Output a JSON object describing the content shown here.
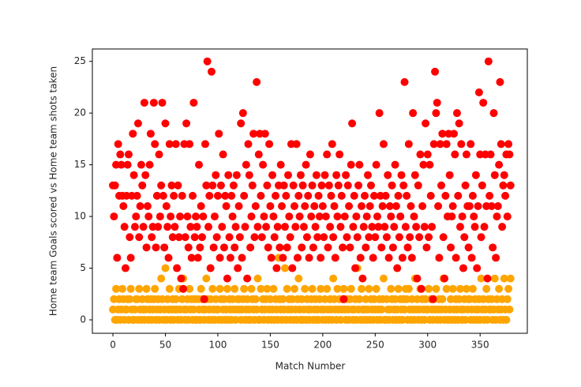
{
  "chart_data": {
    "type": "scatter",
    "x_label": "Match Number",
    "y_label": "Home team Goals scored vs Home team shots taken",
    "xlim": [
      -19.6,
      395
    ],
    "ylim": [
      -1.3,
      26.2
    ],
    "xticks": [
      0,
      50,
      100,
      150,
      200,
      250,
      300,
      350
    ],
    "yticks": [
      0,
      5,
      10,
      15,
      20,
      25
    ],
    "grid": false,
    "x": [
      0,
      1,
      2,
      3,
      4,
      5,
      6,
      7,
      8,
      9,
      10,
      11,
      12,
      13,
      14,
      15,
      16,
      17,
      18,
      19,
      20,
      21,
      22,
      23,
      24,
      25,
      26,
      27,
      28,
      29,
      30,
      31,
      32,
      33,
      34,
      35,
      36,
      37,
      38,
      39,
      40,
      41,
      42,
      43,
      44,
      45,
      46,
      47,
      48,
      49,
      50,
      51,
      52,
      53,
      54,
      55,
      56,
      57,
      58,
      59,
      60,
      61,
      62,
      63,
      64,
      65,
      66,
      67,
      68,
      69,
      70,
      71,
      72,
      73,
      74,
      75,
      76,
      77,
      78,
      79,
      80,
      81,
      82,
      83,
      84,
      85,
      86,
      87,
      88,
      89,
      90,
      91,
      92,
      93,
      94,
      95,
      96,
      97,
      98,
      99,
      100,
      101,
      102,
      103,
      104,
      105,
      106,
      107,
      108,
      109,
      110,
      111,
      112,
      113,
      114,
      115,
      116,
      117,
      118,
      119,
      120,
      121,
      122,
      123,
      124,
      125,
      126,
      127,
      128,
      129,
      130,
      131,
      132,
      133,
      134,
      135,
      136,
      137,
      138,
      139,
      140,
      141,
      142,
      143,
      144,
      145,
      146,
      147,
      148,
      149,
      150,
      151,
      152,
      153,
      154,
      155,
      156,
      157,
      158,
      159,
      160,
      161,
      162,
      163,
      164,
      165,
      166,
      167,
      168,
      169,
      170,
      171,
      172,
      173,
      174,
      175,
      176,
      177,
      178,
      179,
      180,
      181,
      182,
      183,
      184,
      185,
      186,
      187,
      188,
      189,
      190,
      191,
      192,
      193,
      194,
      195,
      196,
      197,
      198,
      199,
      200,
      201,
      202,
      203,
      204,
      205,
      206,
      207,
      208,
      209,
      210,
      211,
      212,
      213,
      214,
      215,
      216,
      217,
      218,
      219,
      220,
      221,
      222,
      223,
      224,
      225,
      226,
      227,
      228,
      229,
      230,
      231,
      232,
      233,
      234,
      235,
      236,
      237,
      238,
      239,
      240,
      241,
      242,
      243,
      244,
      245,
      246,
      247,
      248,
      249,
      250,
      251,
      252,
      253,
      254,
      255,
      256,
      257,
      258,
      259,
      260,
      261,
      262,
      263,
      264,
      265,
      266,
      267,
      268,
      269,
      270,
      271,
      272,
      273,
      274,
      275,
      276,
      277,
      278,
      279,
      280,
      281,
      282,
      283,
      284,
      285,
      286,
      287,
      288,
      289,
      290,
      291,
      292,
      293,
      294,
      295,
      296,
      297,
      298,
      299,
      300,
      301,
      302,
      303,
      304,
      305,
      306,
      307,
      308,
      309,
      310,
      311,
      312,
      313,
      314,
      315,
      316,
      317,
      318,
      319,
      320,
      321,
      322,
      323,
      324,
      325,
      326,
      327,
      328,
      329,
      330,
      331,
      332,
      333,
      334,
      335,
      336,
      337,
      338,
      339,
      340,
      341,
      342,
      343,
      344,
      345,
      346,
      347,
      348,
      349,
      350,
      351,
      352,
      353,
      354,
      355,
      356,
      357,
      358,
      359,
      360,
      361,
      362,
      363,
      364,
      365,
      366,
      367,
      368,
      369,
      370,
      371,
      372,
      373,
      374,
      375,
      376,
      377,
      378,
      379
    ],
    "series": [
      {
        "color": "#ffa500",
        "values": [
          1,
          2,
          0,
          3,
          0,
          1,
          2,
          0,
          1,
          3,
          2,
          0,
          1,
          1,
          2,
          0,
          2,
          3,
          1,
          0,
          0,
          1,
          2,
          2,
          0,
          3,
          1,
          0,
          2,
          1,
          0,
          1,
          3,
          2,
          0,
          1,
          2,
          0,
          1,
          2,
          3,
          0,
          1,
          2,
          0,
          1,
          4,
          2,
          0,
          1,
          5,
          0,
          2,
          1,
          3,
          0,
          1,
          2,
          0,
          1,
          2,
          1,
          0,
          3,
          1,
          0,
          2,
          4,
          1,
          0,
          1,
          2,
          0,
          3,
          1,
          2,
          0,
          1,
          2,
          0,
          0,
          2,
          1,
          0,
          3,
          2,
          1,
          0,
          1,
          4,
          2,
          0,
          1,
          2,
          0,
          3,
          1,
          0,
          2,
          1,
          1,
          0,
          3,
          2,
          0,
          1,
          2,
          0,
          1,
          3,
          0,
          2,
          1,
          0,
          2,
          1,
          3,
          0,
          1,
          2,
          2,
          1,
          0,
          1,
          2,
          3,
          0,
          1,
          2,
          0,
          1,
          0,
          3,
          2,
          1,
          0,
          2,
          1,
          4,
          0,
          0,
          3,
          1,
          2,
          0,
          1,
          2,
          3,
          0,
          1,
          2,
          0,
          1,
          3,
          0,
          2,
          1,
          0,
          6,
          2,
          1,
          0,
          2,
          1,
          5,
          0,
          3,
          1,
          2,
          0,
          1,
          2,
          0,
          3,
          1,
          0,
          2,
          4,
          1,
          0,
          2,
          0,
          1,
          3,
          0,
          2,
          1,
          0,
          1,
          2,
          3,
          0,
          1,
          2,
          0,
          1,
          0,
          2,
          3,
          1,
          0,
          1,
          2,
          0,
          3,
          1,
          0,
          2,
          1,
          0,
          4,
          2,
          1,
          0,
          3,
          1,
          2,
          0,
          1,
          2,
          3,
          1,
          0,
          2,
          1,
          0,
          2,
          3,
          1,
          0,
          1,
          2,
          0,
          5,
          1,
          2,
          0,
          3,
          1,
          0,
          1,
          2,
          0,
          1,
          3,
          0,
          2,
          1,
          0,
          2,
          1,
          3,
          0,
          1,
          2,
          0,
          1,
          2,
          4,
          0,
          0,
          2,
          1,
          0,
          1,
          3,
          2,
          0,
          1,
          2,
          0,
          1,
          3,
          0,
          2,
          1,
          0,
          2,
          1,
          3,
          2,
          0,
          3,
          1,
          0,
          2,
          1,
          0,
          4,
          1,
          2,
          0,
          1,
          3,
          0,
          2,
          1,
          0,
          2,
          1,
          1,
          3,
          0,
          2,
          1,
          0,
          2,
          1,
          3,
          0,
          1,
          2,
          0,
          1,
          2,
          4,
          0,
          1,
          3,
          0,
          0,
          1,
          2,
          0,
          3,
          1,
          0,
          2,
          1,
          0,
          2,
          3,
          1,
          0,
          1,
          2,
          0,
          3,
          1,
          2,
          2,
          0,
          1,
          3,
          0,
          2,
          1,
          0,
          1,
          2,
          0,
          4,
          1,
          2,
          0,
          1,
          3,
          0,
          2,
          1,
          1,
          2,
          0,
          1,
          4,
          0,
          2,
          1,
          3,
          0,
          1,
          2,
          0,
          4,
          1,
          0,
          2,
          3,
          1,
          4
        ]
      },
      {
        "color": "#ff0000",
        "values": [
          13,
          10,
          13,
          15,
          6,
          17,
          12,
          16,
          15,
          12,
          11,
          9,
          5,
          12,
          15,
          16,
          8,
          6,
          12,
          18,
          14,
          9,
          10,
          12,
          19,
          8,
          11,
          15,
          13,
          9,
          21,
          14,
          7,
          11,
          10,
          15,
          18,
          8,
          9,
          21,
          17,
          7,
          12,
          9,
          16,
          10,
          13,
          21,
          12,
          7,
          19,
          11,
          9,
          6,
          17,
          10,
          13,
          8,
          12,
          9,
          17,
          5,
          13,
          8,
          10,
          4,
          12,
          3,
          17,
          8,
          19,
          10,
          7,
          17,
          9,
          6,
          12,
          21,
          8,
          10,
          9,
          6,
          15,
          7,
          11,
          8,
          10,
          2,
          17,
          13,
          25,
          9,
          12,
          5,
          24,
          13,
          7,
          10,
          14,
          8,
          12,
          18,
          6,
          13,
          9,
          16,
          7,
          12,
          11,
          4,
          14,
          8,
          6,
          12,
          10,
          13,
          7,
          9,
          14,
          5,
          11,
          8,
          19,
          6,
          20,
          12,
          9,
          15,
          4,
          17,
          14,
          7,
          10,
          13,
          18,
          8,
          11,
          23,
          9,
          16,
          18,
          12,
          8,
          15,
          10,
          18,
          9,
          13,
          7,
          17,
          11,
          6,
          14,
          10,
          8,
          12,
          5,
          9,
          13,
          7,
          15,
          11,
          6,
          13,
          9,
          12,
          7,
          14,
          10,
          8,
          17,
          5,
          13,
          11,
          9,
          17,
          6,
          12,
          10,
          14,
          7,
          13,
          9,
          11,
          15,
          8,
          12,
          6,
          16,
          10,
          13,
          7,
          11,
          9,
          14,
          8,
          12,
          10,
          6,
          13,
          11,
          8,
          14,
          10,
          16,
          7,
          13,
          9,
          12,
          17,
          8,
          11,
          6,
          14,
          10,
          13,
          16,
          9,
          12,
          7,
          2,
          10,
          14,
          8,
          13,
          11,
          7,
          15,
          19,
          9,
          12,
          5,
          10,
          8,
          13,
          15,
          6,
          11,
          4,
          9,
          12,
          7,
          10,
          14,
          8,
          11,
          13,
          9,
          6,
          12,
          8,
          15,
          10,
          9,
          20,
          12,
          7,
          11,
          17,
          9,
          12,
          8,
          14,
          6,
          11,
          10,
          13,
          7,
          9,
          15,
          11,
          5,
          12,
          8,
          10,
          14,
          6,
          13,
          23,
          9,
          12,
          7,
          17,
          8,
          11,
          6,
          20,
          10,
          14,
          9,
          4,
          13,
          8,
          16,
          3,
          11,
          15,
          9,
          19,
          7,
          16,
          8,
          15,
          12,
          9,
          2,
          17,
          24,
          20,
          21,
          11,
          6,
          17,
          13,
          18,
          8,
          4,
          12,
          17,
          10,
          18,
          14,
          7,
          10,
          11,
          18,
          16,
          6,
          20,
          12,
          19,
          9,
          17,
          10,
          5,
          8,
          13,
          16,
          11,
          7,
          11,
          17,
          6,
          12,
          10,
          9,
          14,
          5,
          11,
          22,
          16,
          8,
          13,
          21,
          9,
          16,
          11,
          4,
          25,
          12,
          16,
          11,
          7,
          20,
          14,
          6,
          10,
          11,
          15,
          23,
          17,
          9,
          13,
          14,
          12,
          16,
          10,
          17,
          16,
          13
        ]
      }
    ]
  }
}
